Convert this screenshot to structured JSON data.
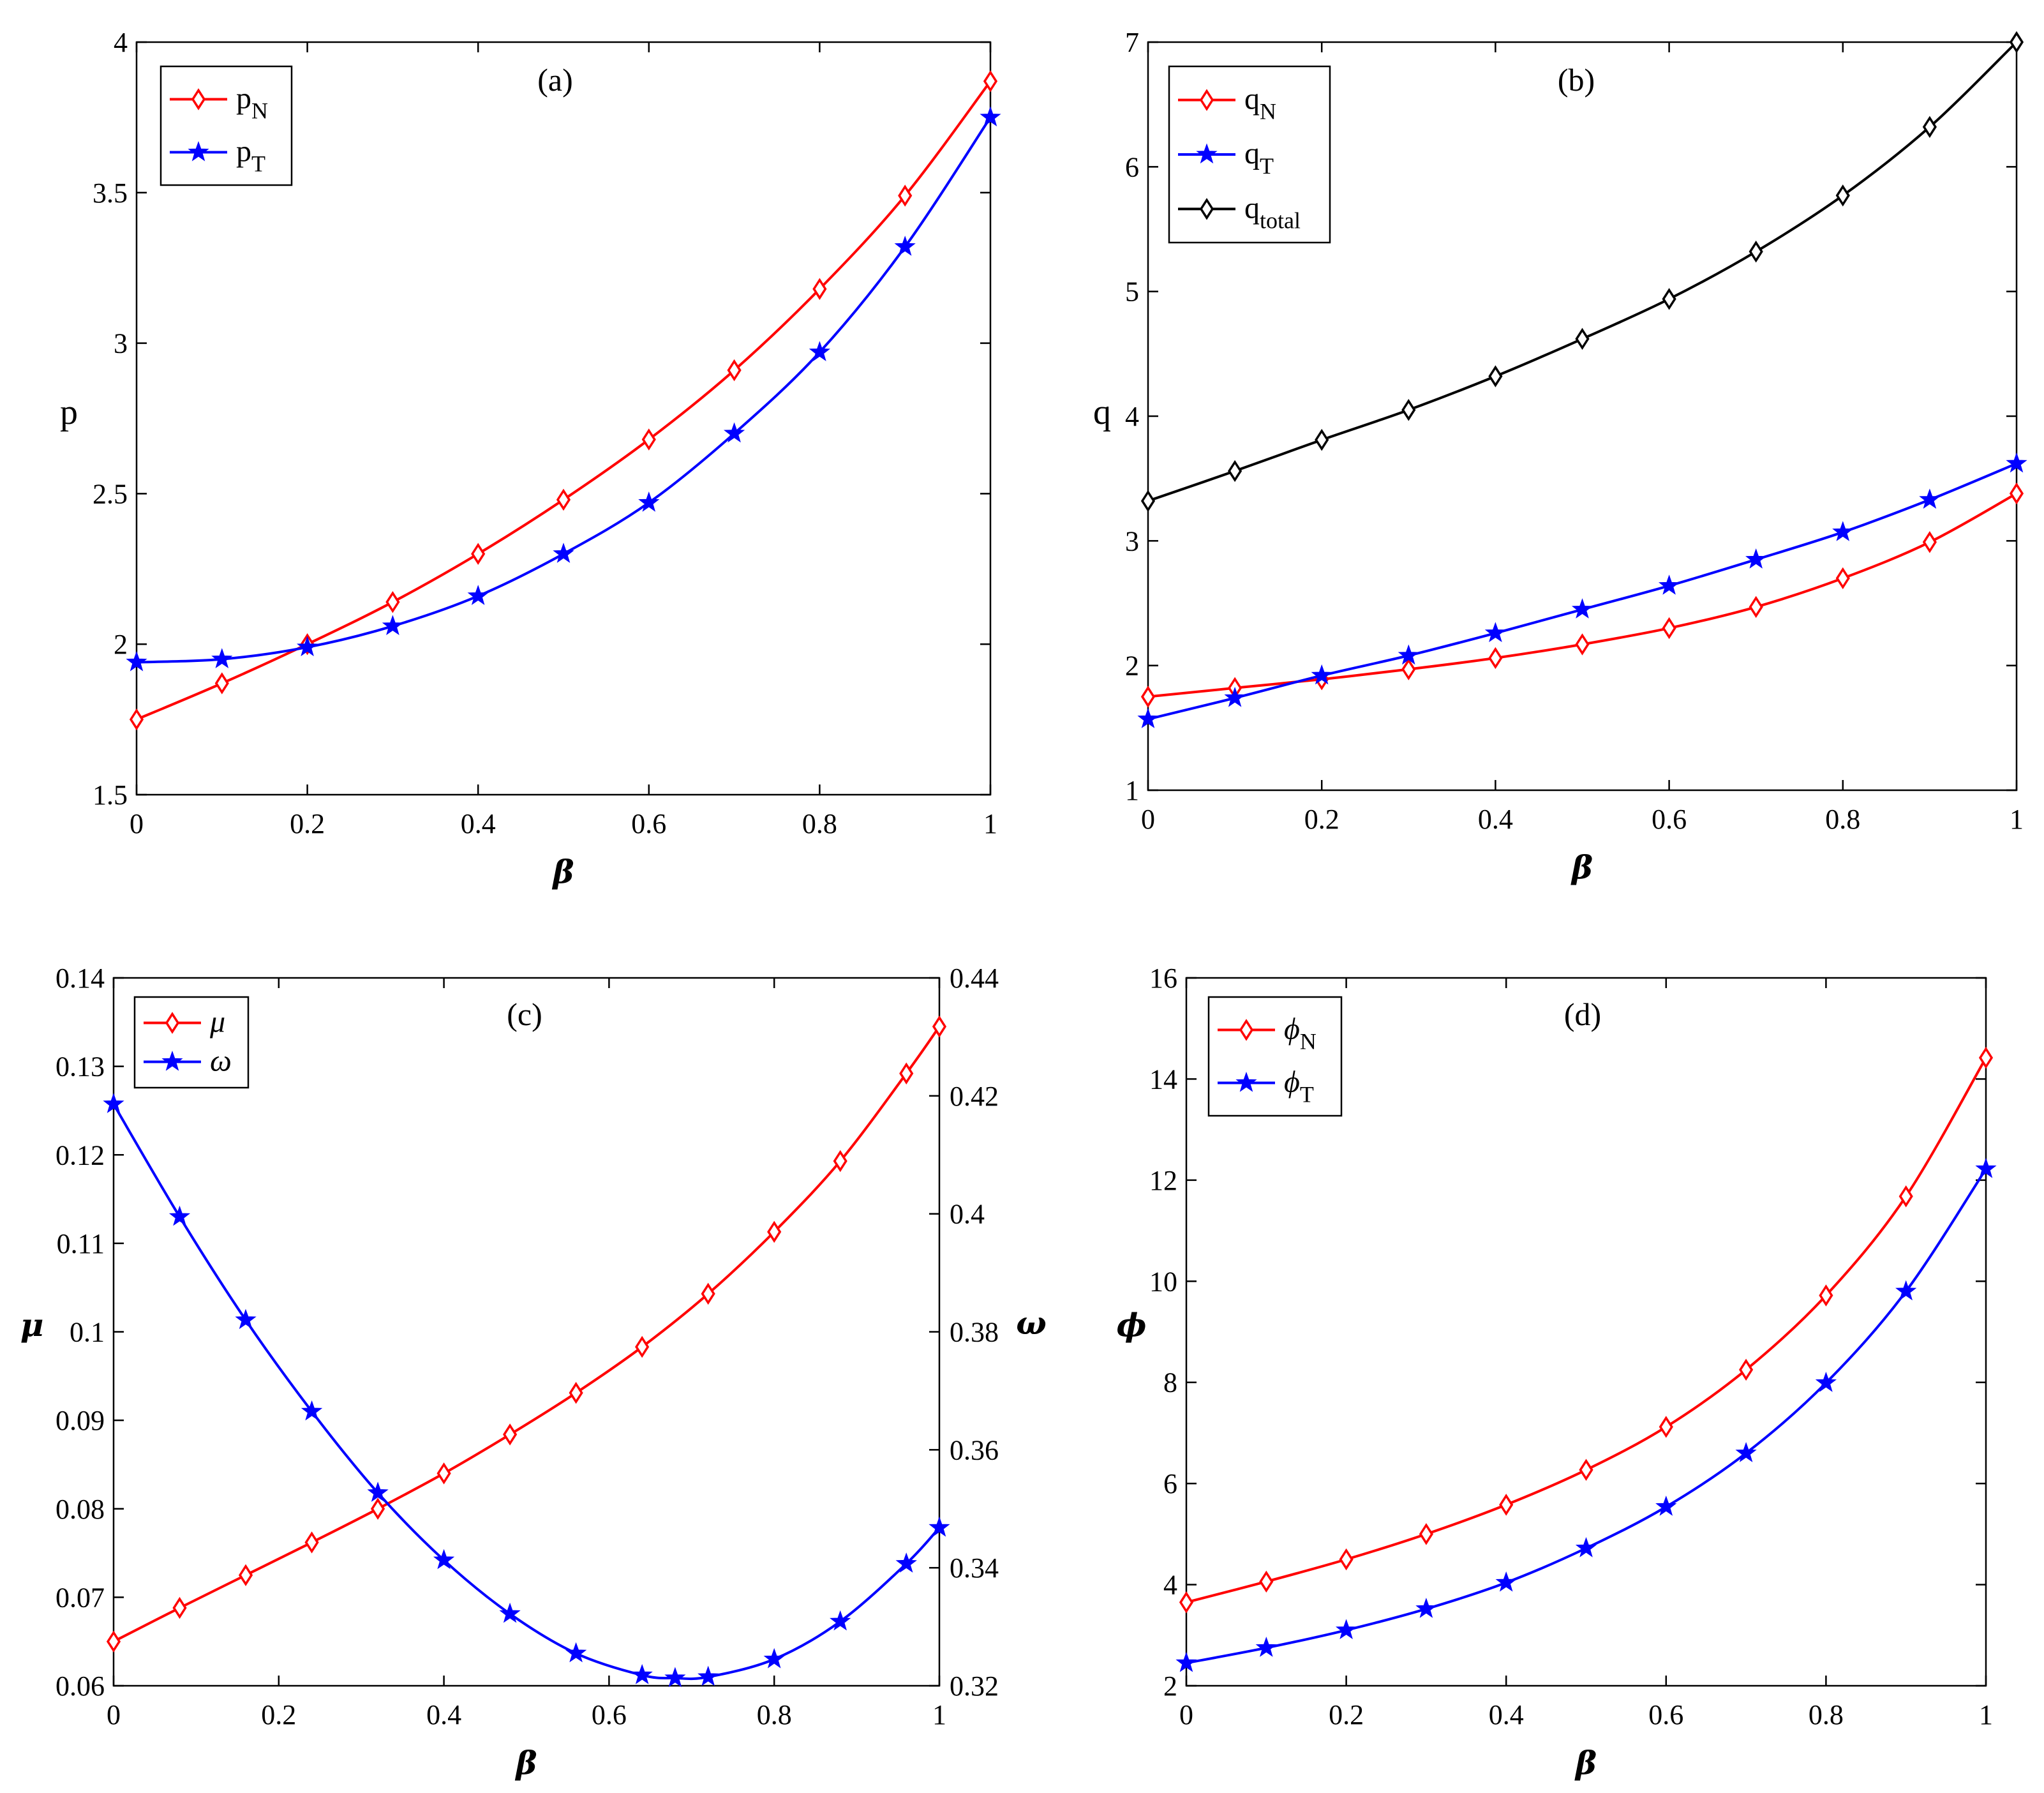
{
  "chart_data": [
    {
      "type": "line",
      "panel": "(a)",
      "title": "(a)",
      "xlabel": "β",
      "ylabel": "p",
      "xlim": [
        0,
        1
      ],
      "ylim": [
        1.5,
        4
      ],
      "xticks": [
        "0",
        "0.2",
        "0.4",
        "0.6",
        "0.8",
        "1"
      ],
      "yticks": [
        "1.5",
        "2",
        "2.5",
        "3",
        "3.5",
        "4"
      ],
      "legend": {
        "placement": "top-left"
      },
      "series": [
        {
          "name": "p",
          "sub": "N",
          "color": "#ff0000",
          "marker": "diamond",
          "x": [
            0,
            0.1,
            0.2,
            0.3,
            0.4,
            0.5,
            0.6,
            0.7,
            0.8,
            0.9,
            1
          ],
          "values": [
            1.75,
            1.87,
            2.0,
            2.14,
            2.3,
            2.48,
            2.68,
            2.91,
            3.18,
            3.49,
            3.87
          ]
        },
        {
          "name": "p",
          "sub": "T",
          "color": "#0000ff",
          "marker": "star",
          "x": [
            0,
            0.1,
            0.2,
            0.3,
            0.4,
            0.5,
            0.6,
            0.7,
            0.8,
            0.9,
            1
          ],
          "values": [
            1.94,
            1.95,
            1.99,
            2.06,
            2.16,
            2.3,
            2.47,
            2.7,
            2.97,
            3.32,
            3.75
          ]
        }
      ]
    },
    {
      "type": "line",
      "panel": "(b)",
      "title": "(b)",
      "xlabel": "β",
      "ylabel": "q",
      "xlim": [
        0,
        1
      ],
      "ylim": [
        1,
        7
      ],
      "xticks": [
        "0",
        "0.2",
        "0.4",
        "0.6",
        "0.8",
        "1"
      ],
      "yticks": [
        "1",
        "2",
        "3",
        "4",
        "5",
        "6",
        "7"
      ],
      "legend": {
        "placement": "top-left"
      },
      "series": [
        {
          "name": "q",
          "sub": "N",
          "color": "#ff0000",
          "marker": "diamond",
          "x": [
            0,
            0.1,
            0.2,
            0.3,
            0.4,
            0.5,
            0.6,
            0.7,
            0.8,
            0.9,
            1
          ],
          "values": [
            1.75,
            1.82,
            1.89,
            1.97,
            2.06,
            2.17,
            2.3,
            2.47,
            2.7,
            2.99,
            3.38
          ]
        },
        {
          "name": "q",
          "sub": "T",
          "color": "#0000ff",
          "marker": "star",
          "x": [
            0,
            0.1,
            0.2,
            0.3,
            0.4,
            0.5,
            0.6,
            0.7,
            0.8,
            0.9,
            1
          ],
          "values": [
            1.57,
            1.74,
            1.92,
            2.08,
            2.26,
            2.45,
            2.64,
            2.85,
            3.07,
            3.33,
            3.62
          ]
        },
        {
          "name": "q",
          "sub": "total",
          "color": "#000000",
          "marker": "diamond",
          "x": [
            0,
            0.1,
            0.2,
            0.3,
            0.4,
            0.5,
            0.6,
            0.7,
            0.8,
            0.9,
            1
          ],
          "values": [
            3.32,
            3.56,
            3.81,
            4.05,
            4.32,
            4.62,
            4.94,
            5.32,
            5.77,
            6.32,
            7.0
          ]
        }
      ]
    },
    {
      "type": "line",
      "panel": "(c)",
      "title": "(c)",
      "xlabel": "β",
      "ylabel": "μ",
      "ylabel_right": "ω",
      "xlim": [
        0,
        1
      ],
      "ylim": [
        0.06,
        0.14
      ],
      "ylim_right": [
        0.32,
        0.44
      ],
      "xticks": [
        "0",
        "0.2",
        "0.4",
        "0.6",
        "0.8",
        "1"
      ],
      "yticks": [
        "0.06",
        "0.07",
        "0.08",
        "0.09",
        "0.1",
        "0.11",
        "0.12",
        "0.13",
        "0.14"
      ],
      "yticks_right": [
        "0.32",
        "0.34",
        "0.36",
        "0.38",
        "0.4",
        "0.42",
        "0.44"
      ],
      "legend": {
        "placement": "top-left"
      },
      "series": [
        {
          "name": "μ",
          "sub": "",
          "color": "#ff0000",
          "marker": "diamond",
          "axis": "left",
          "x": [
            0,
            0.08,
            0.16,
            0.24,
            0.32,
            0.4,
            0.48,
            0.56,
            0.64,
            0.72,
            0.8,
            0.88,
            0.96,
            1
          ],
          "values": [
            0.065,
            0.0688,
            0.0725,
            0.0762,
            0.08,
            0.084,
            0.0884,
            0.0931,
            0.0983,
            0.1043,
            0.1113,
            0.1193,
            0.1292,
            0.1345
          ]
        },
        {
          "name": "ω",
          "sub": "",
          "color": "#0000ff",
          "marker": "star",
          "axis": "right",
          "x": [
            0,
            0.08,
            0.16,
            0.24,
            0.32,
            0.4,
            0.48,
            0.56,
            0.64,
            0.68,
            0.72,
            0.8,
            0.88,
            0.96,
            1
          ],
          "values": [
            0.4186,
            0.3995,
            0.382,
            0.3665,
            0.3527,
            0.3413,
            0.3322,
            0.3255,
            0.3218,
            0.3213,
            0.3215,
            0.3245,
            0.3309,
            0.3407,
            0.3468
          ]
        }
      ]
    },
    {
      "type": "line",
      "panel": "(d)",
      "title": "(d)",
      "xlabel": "β",
      "ylabel": "ϕ",
      "xlim": [
        0,
        1
      ],
      "ylim": [
        2,
        16
      ],
      "xticks": [
        "0",
        "0.2",
        "0.4",
        "0.6",
        "0.8",
        "1"
      ],
      "yticks": [
        "2",
        "4",
        "6",
        "8",
        "10",
        "12",
        "14",
        "16"
      ],
      "legend": {
        "placement": "top-left"
      },
      "series": [
        {
          "name": "ϕ",
          "sub": "N",
          "color": "#ff0000",
          "marker": "diamond",
          "x": [
            0,
            0.1,
            0.2,
            0.3,
            0.4,
            0.5,
            0.6,
            0.7,
            0.8,
            0.9,
            1
          ],
          "values": [
            3.65,
            4.06,
            4.5,
            5.0,
            5.58,
            6.27,
            7.12,
            8.25,
            9.72,
            11.68,
            14.42
          ]
        },
        {
          "name": "ϕ",
          "sub": "T",
          "color": "#0000ff",
          "marker": "star",
          "x": [
            0,
            0.1,
            0.2,
            0.3,
            0.4,
            0.5,
            0.6,
            0.7,
            0.8,
            0.9,
            1
          ],
          "values": [
            2.45,
            2.75,
            3.1,
            3.52,
            4.04,
            4.72,
            5.54,
            6.6,
            7.99,
            9.8,
            12.22
          ]
        }
      ]
    }
  ]
}
